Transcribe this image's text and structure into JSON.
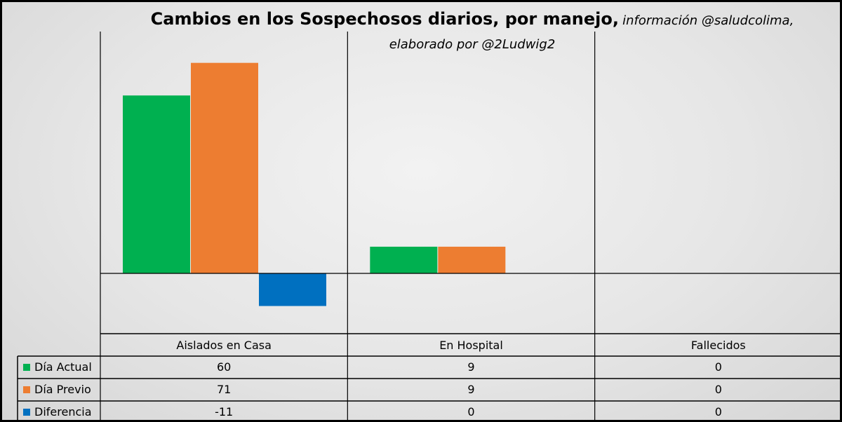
{
  "chart_data": {
    "type": "bar",
    "title": "Cambios en los Sospechosos diarios, por manejo,",
    "subtitle_part1": "información @saludcolima,",
    "subtitle_part2": "elaborado por @2Ludwig2",
    "categories": [
      "Aislados en Casa",
      "En Hospital",
      "Fallecidos"
    ],
    "series": [
      {
        "name": "Día Actual",
        "color": "#00b050",
        "values": [
          60,
          9,
          0
        ],
        "display": [
          "60",
          "9",
          "0"
        ]
      },
      {
        "name": "Día Previo",
        "color": "#ed7d31",
        "values": [
          71,
          9,
          0
        ],
        "display": [
          "71",
          "9",
          "0"
        ]
      },
      {
        "name": "Diferencia",
        "color": "#0070c0",
        "values": [
          -11,
          0,
          0
        ],
        "display": [
          "-11",
          "0",
          "0"
        ]
      }
    ],
    "ylim": [
      -11,
      71
    ],
    "gridlines": false,
    "data_table": true,
    "legend": "data-table"
  }
}
